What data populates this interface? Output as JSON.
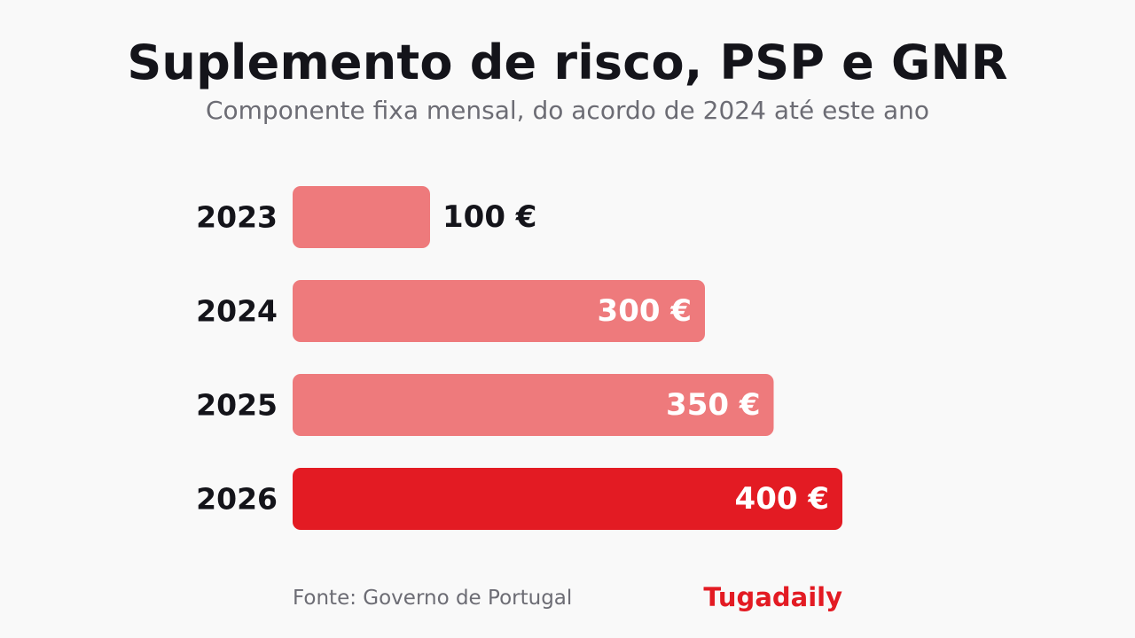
{
  "chart_data": {
    "type": "bar",
    "orientation": "horizontal",
    "title": "Suplemento de risco, PSP e GNR",
    "subtitle": "Componente fixa mensal, do acordo de 2024 até este ano",
    "categories": [
      "2023",
      "2024",
      "2025",
      "2026"
    ],
    "values": [
      100,
      300,
      350,
      400
    ],
    "data_labels": [
      "100 €",
      "300 €",
      "350 €",
      "400 €"
    ],
    "unit": "€",
    "xlim": [
      0,
      400
    ],
    "grid": false,
    "legend": "none",
    "colors": {
      "bar": "#ee7a7c",
      "highlight": "#e31b23",
      "category_label": "#14141a",
      "value_label_outside": "#14141a",
      "value_label_inside": "#ffffff"
    },
    "highlight_category": "2026"
  },
  "footer": {
    "source": "Fonte: Governo de Portugal",
    "brand": "Tugadaily"
  }
}
